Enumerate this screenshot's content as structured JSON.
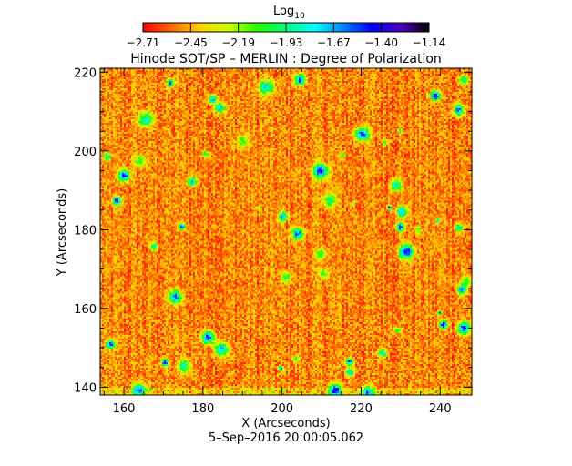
{
  "chart_data": {
    "type": "heatmap",
    "title": "Hinode SOT/SP – MERLIN : Degree of Polarization",
    "xlabel": "X (Arcseconds)",
    "ylabel": "Y (Arcseconds)",
    "xlim": [
      154,
      248
    ],
    "ylim": [
      138,
      221
    ],
    "xticks": [
      "160",
      "180",
      "200",
      "220",
      "240"
    ],
    "xtick_values": [
      160,
      180,
      200,
      220,
      240
    ],
    "yticks": [
      "140",
      "160",
      "180",
      "200",
      "220"
    ],
    "ytick_values": [
      140,
      160,
      180,
      200,
      220
    ],
    "timestamp": "5–Sep–2016 20:00:05.062",
    "colorbar": {
      "title": "Log",
      "title_subscript": "10",
      "range": [
        -2.71,
        -1.14
      ],
      "tick_labels": [
        "−2.71",
        "−2.45",
        "−2.19",
        "−1.93",
        "−1.67",
        "−1.40",
        "−1.14"
      ],
      "colormap": [
        "#ff0000",
        "#ff6a00",
        "#ffd000",
        "#c8ff00",
        "#22ff00",
        "#00ff80",
        "#00ffff",
        "#0080ff",
        "#0000ff",
        "#5000c0",
        "#000000"
      ]
    }
  }
}
